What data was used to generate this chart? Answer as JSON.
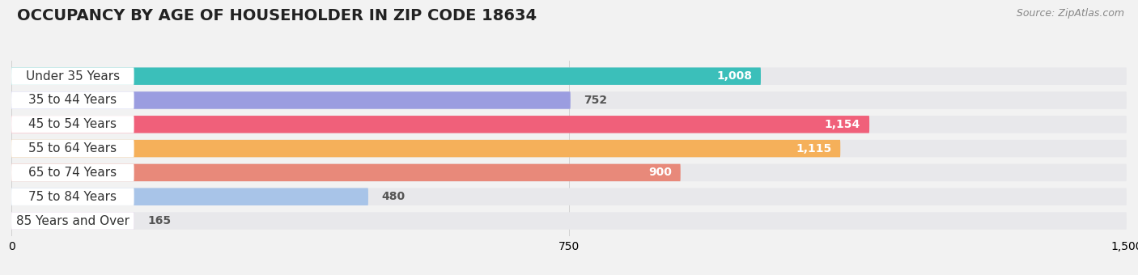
{
  "title": "OCCUPANCY BY AGE OF HOUSEHOLDER IN ZIP CODE 18634",
  "source": "Source: ZipAtlas.com",
  "categories": [
    "Under 35 Years",
    "35 to 44 Years",
    "45 to 54 Years",
    "55 to 64 Years",
    "65 to 74 Years",
    "75 to 84 Years",
    "85 Years and Over"
  ],
  "values": [
    1008,
    752,
    1154,
    1115,
    900,
    480,
    165
  ],
  "bar_colors": [
    "#3bbfba",
    "#9b9de0",
    "#f0607a",
    "#f5b05a",
    "#e8897a",
    "#a8c4e8",
    "#caaed4"
  ],
  "xlim": [
    0,
    1500
  ],
  "xticks": [
    0,
    750,
    1500
  ],
  "bar_height": 0.72,
  "bg_color": "#f2f2f2",
  "bar_bg_color": "#e8e8eb",
  "value_color_inside": "#ffffff",
  "value_color_outside": "#555555",
  "label_color": "#333333",
  "title_fontsize": 14,
  "source_fontsize": 9,
  "label_fontsize": 11,
  "value_fontsize": 10,
  "tick_fontsize": 10,
  "inside_threshold": 800
}
